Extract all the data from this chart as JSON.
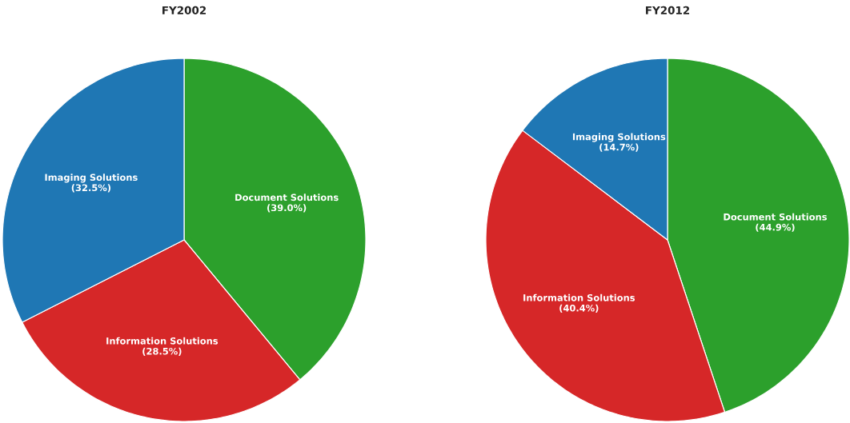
{
  "chart_data": [
    {
      "type": "pie",
      "title": "FY2002",
      "categories": [
        "Document Solutions",
        "Information Solutions",
        "Imaging Solutions"
      ],
      "values": [
        39.0,
        28.5,
        32.5
      ],
      "colors": [
        "#2ca02c",
        "#d62728",
        "#1f77b4"
      ],
      "value_labels": [
        "(39.0%)",
        "(28.5%)",
        "(32.5%)"
      ]
    },
    {
      "type": "pie",
      "title": "FY2012",
      "categories": [
        "Document Solutions",
        "Information Solutions",
        "Imaging Solutions"
      ],
      "values": [
        44.9,
        40.4,
        14.7
      ],
      "colors": [
        "#2ca02c",
        "#d62728",
        "#1f77b4"
      ],
      "value_labels": [
        "(44.9%)",
        "(40.4%)",
        "(14.7%)"
      ]
    }
  ]
}
